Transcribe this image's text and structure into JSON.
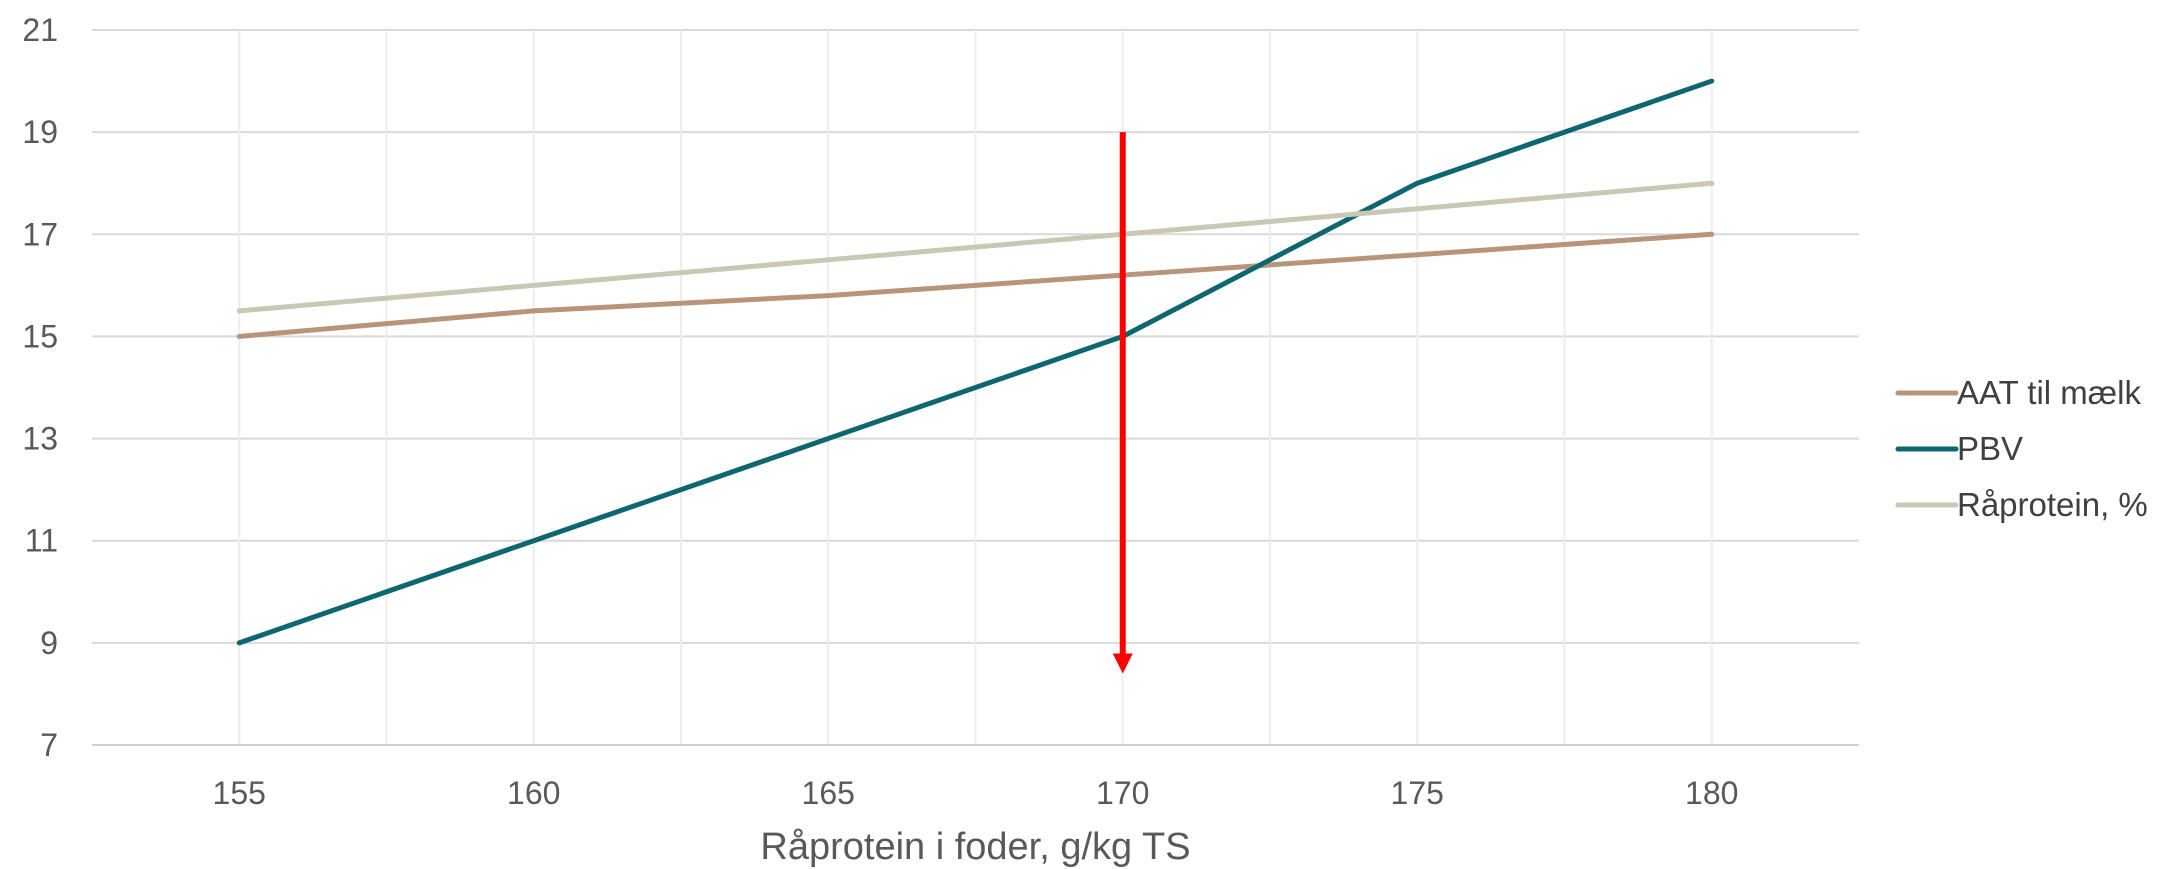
{
  "chart_data": {
    "type": "line",
    "x": [
      155,
      160,
      165,
      170,
      175,
      180
    ],
    "xlabel": "Råprotein i foder, g/kg TS",
    "ylabel": "",
    "xlim": [
      152.5,
      182.5
    ],
    "ylim": [
      7,
      21
    ],
    "x_ticks": [
      155,
      160,
      165,
      170,
      175,
      180
    ],
    "y_ticks": [
      7,
      9,
      11,
      13,
      15,
      17,
      19,
      21
    ],
    "grid": true,
    "legend_position": "right",
    "series": [
      {
        "name": "AAT til mælk",
        "color": "#b8947a",
        "values": [
          15.0,
          15.5,
          15.8,
          16.2,
          16.6,
          17.0
        ]
      },
      {
        "name": "PBV",
        "color": "#0e6670",
        "values": [
          9.0,
          11.0,
          13.0,
          15.0,
          18.0,
          20.0
        ]
      },
      {
        "name": "Råprotein, %",
        "color": "#c9c8b4",
        "values": [
          15.5,
          16.0,
          16.5,
          17.0,
          17.5,
          18.0
        ]
      }
    ],
    "annotations": [
      {
        "type": "arrow",
        "color": "#ff0000",
        "x": 170,
        "y_from": 19,
        "y_to": 8.4
      }
    ]
  }
}
